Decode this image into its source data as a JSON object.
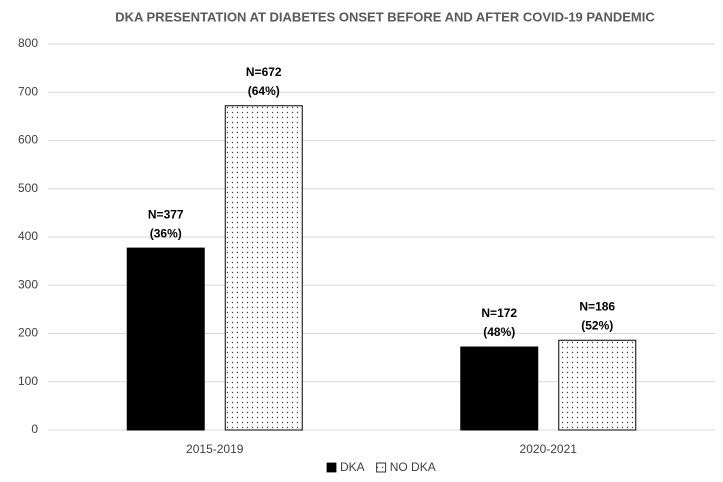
{
  "chart_data": {
    "type": "bar",
    "title": "DKA PRESENTATION AT DIABETES ONSET BEFORE AND AFTER COVID-19 PANDEMIC",
    "categories": [
      "2015-2019",
      "2020-2021"
    ],
    "series": [
      {
        "name": "DKA",
        "color": "#000000",
        "values": [
          377,
          172
        ],
        "value_labels": [
          [
            "N=377",
            "(36%)"
          ],
          [
            "N=172",
            "(48%)"
          ]
        ]
      },
      {
        "name": "NO DKA",
        "color": "#ffffff",
        "fill_pattern": "dots",
        "values": [
          672,
          186
        ],
        "value_labels": [
          [
            "N=672",
            "(64%)"
          ],
          [
            "N=186",
            "(52%)"
          ]
        ]
      }
    ],
    "ylim": [
      0,
      800
    ],
    "yticks": [
      0,
      100,
      200,
      300,
      400,
      500,
      600,
      700,
      800
    ],
    "grid": true,
    "legend": "bottom"
  }
}
